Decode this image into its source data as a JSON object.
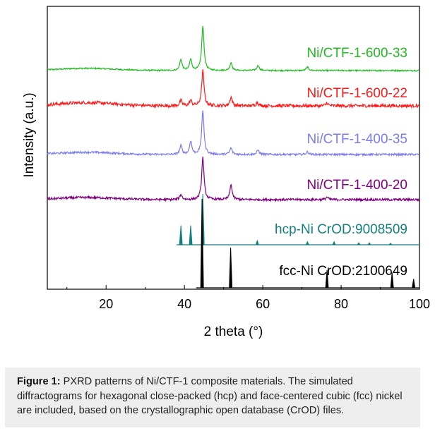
{
  "caption": {
    "label": "Figure 1:",
    "text": " PXRD patterns of Ni/CTF-1 composite materials. The simulated diffractograms for hexagonal close-packed (hcp) and face-centered cubic (fcc) nickel are included, based on the crystallographic open database (CrOD) files."
  },
  "chart_data": {
    "type": "line",
    "title": "",
    "xlabel": "2 theta (°)",
    "ylabel": "Intensity (a.u.)",
    "xlim": [
      5,
      100
    ],
    "xticks": [
      20,
      40,
      60,
      80,
      100
    ],
    "yticks": [],
    "grid": false,
    "series": [
      {
        "name": "Ni/CTF-1-600-33",
        "color": "#22bb22",
        "kind": "noisy",
        "noise": 0.35,
        "peaks": [
          [
            39.1,
            0.25
          ],
          [
            41.6,
            0.25
          ],
          [
            44.7,
            1.0
          ],
          [
            51.9,
            0.18
          ],
          [
            58.8,
            0.12
          ],
          [
            71.4,
            0.08
          ]
        ]
      },
      {
        "name": "Ni/CTF-1-600-22",
        "color": "#ff1a1a",
        "kind": "noisy",
        "noise": 1.0,
        "peaks": [
          [
            39.1,
            0.15
          ],
          [
            41.6,
            0.15
          ],
          [
            44.7,
            1.0
          ],
          [
            51.9,
            0.25
          ],
          [
            58.6,
            0.1
          ],
          [
            76.4,
            0.08
          ]
        ]
      },
      {
        "name": "Ni/CTF-1-400-35",
        "color": "#7b7bef",
        "kind": "noisy",
        "noise": 0.5,
        "peaks": [
          [
            39.1,
            0.2
          ],
          [
            41.6,
            0.3
          ],
          [
            44.7,
            1.0
          ],
          [
            51.9,
            0.15
          ],
          [
            58.8,
            0.1
          ],
          [
            71.4,
            0.06
          ]
        ]
      },
      {
        "name": "Ni/CTF-1-400-20",
        "color": "#7f007f",
        "kind": "noisy",
        "noise": 0.6,
        "peaks": [
          [
            39.1,
            0.12
          ],
          [
            44.7,
            1.0
          ],
          [
            51.9,
            0.35
          ],
          [
            76.4,
            0.06
          ]
        ]
      },
      {
        "name": "hcp-Ni CrOD:9008509",
        "color": "#137f7f",
        "kind": "stick",
        "xstart": 38,
        "peaks": [
          [
            39.1,
            0.38
          ],
          [
            41.6,
            0.38
          ],
          [
            44.7,
            1.0
          ],
          [
            58.6,
            0.08
          ],
          [
            71.4,
            0.06
          ],
          [
            78.2,
            0.06
          ],
          [
            84.5,
            0.04
          ],
          [
            87.2,
            0.04
          ],
          [
            92.6,
            0.03
          ]
        ]
      },
      {
        "name": "fcc-Ni CrOD:2100649",
        "color": "#000000",
        "kind": "stick",
        "xstart": 43,
        "peaks": [
          [
            44.5,
            1.0
          ],
          [
            51.8,
            0.45
          ],
          [
            76.4,
            0.2
          ],
          [
            93.0,
            0.17
          ],
          [
            98.5,
            0.1
          ]
        ]
      }
    ]
  }
}
